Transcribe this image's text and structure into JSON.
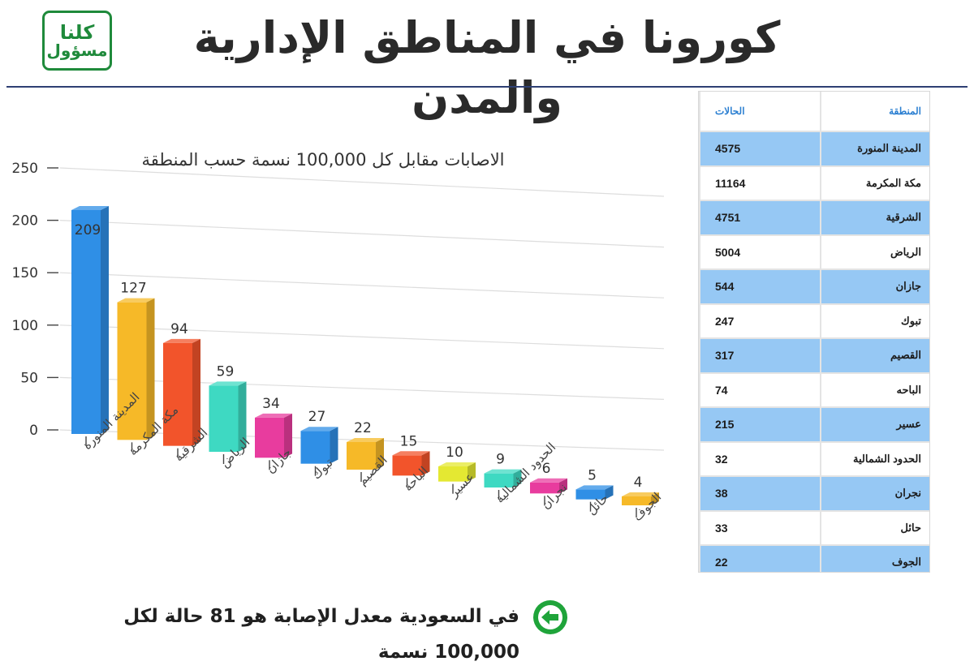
{
  "header": {
    "title": "كورونا في المناطق الإدارية والمدن",
    "logo_line1": "كلنا",
    "logo_line2": "مسؤول"
  },
  "colors": {
    "accent_green": "#1f8a3b",
    "table_highlight": "#96c8f4",
    "header_text": "#2b7fd1"
  },
  "chart_data": {
    "type": "bar",
    "title": "الاصابات مقابل كل 100,000 نسمة حسب المنطقة",
    "xlabel": "",
    "ylabel": "",
    "ylim": [
      0,
      250
    ],
    "yticks": [
      0,
      50,
      100,
      150,
      200,
      250
    ],
    "categories": [
      "المدينة المنورة",
      "مكة المكرمة",
      "الشرقية",
      "الرياض",
      "جازان",
      "تبوك",
      "القصيم",
      "الباحة",
      "عسير",
      "الحدود الشمالية",
      "نجران",
      "حائل",
      "الجوف"
    ],
    "values": [
      209,
      127,
      94,
      59,
      34,
      27,
      22,
      15,
      10,
      9,
      6,
      5,
      4
    ],
    "colors": [
      "#2f8fe6",
      "#f6b928",
      "#f2542b",
      "#3ed9c2",
      "#e83c9e",
      "#2f8fe6",
      "#f6b928",
      "#f2542b",
      "#e4e832",
      "#3ed9c2",
      "#e83c9e",
      "#2f8fe6",
      "#f6b928"
    ]
  },
  "table": {
    "col_region": "المنطقة",
    "col_cases": "الحالات",
    "rows": [
      {
        "region": "المدينة المنورة",
        "cases": "4575"
      },
      {
        "region": "مكة المكرمة",
        "cases": "11164"
      },
      {
        "region": "الشرقية",
        "cases": "4751"
      },
      {
        "region": "الرياض",
        "cases": "5004"
      },
      {
        "region": "جازان",
        "cases": "544"
      },
      {
        "region": "تبوك",
        "cases": "247"
      },
      {
        "region": "القصيم",
        "cases": "317"
      },
      {
        "region": "الباحه",
        "cases": "74"
      },
      {
        "region": "عسير",
        "cases": "215"
      },
      {
        "region": "الحدود الشمالية",
        "cases": "32"
      },
      {
        "region": "نجران",
        "cases": "38"
      },
      {
        "region": "حائل",
        "cases": "33"
      },
      {
        "region": "الجوف",
        "cases": "22"
      }
    ]
  },
  "footer": {
    "text": "في السعودية معدل الإصابة هو 81 حالة لكل 100,000 نسمة",
    "icon": "left-arrow-icon"
  }
}
